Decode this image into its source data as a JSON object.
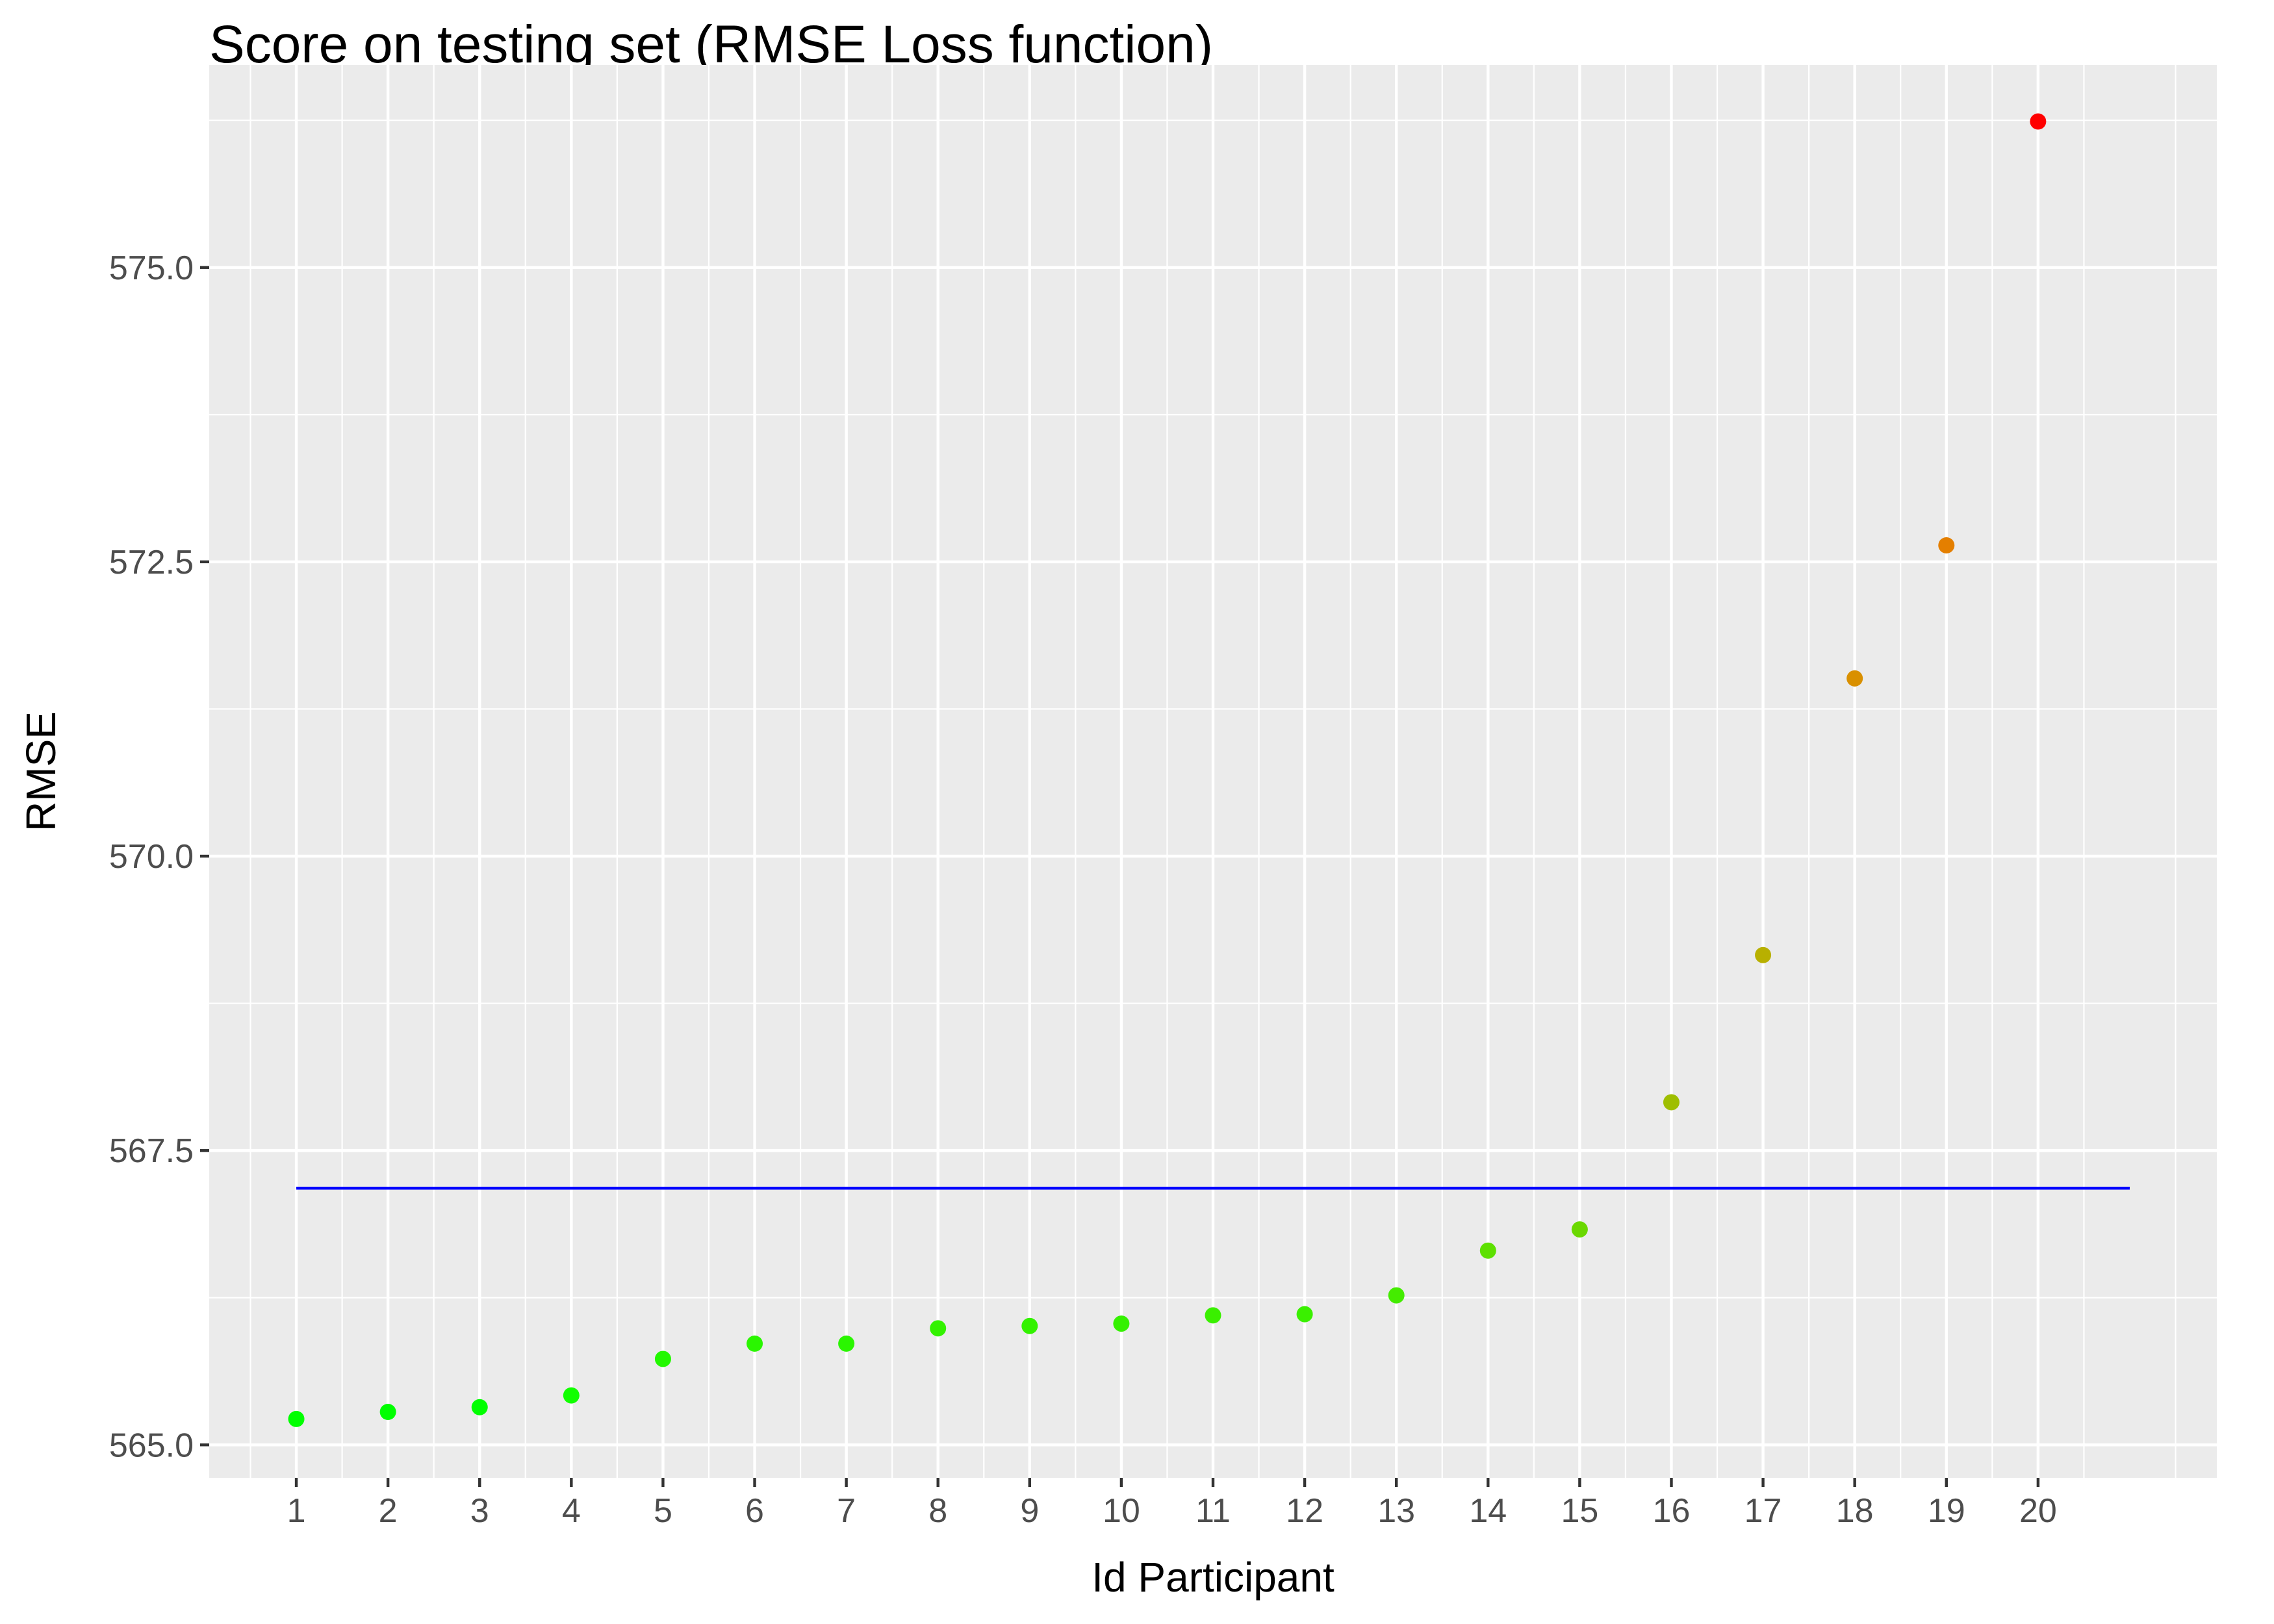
{
  "chart_data": {
    "type": "scatter",
    "title": "Score on testing set (RMSE Loss function)",
    "xlabel": "Id Participant",
    "ylabel": "RMSE",
    "x_ticks": [
      "1",
      "2",
      "3",
      "4",
      "5",
      "6",
      "7",
      "8",
      "9",
      "10",
      "11",
      "12",
      "13",
      "14",
      "15",
      "16",
      "17",
      "18",
      "19",
      "20"
    ],
    "y_ticks": [
      "565.0",
      "567.5",
      "570.0",
      "572.5",
      "575.0"
    ],
    "y_tick_values": [
      565.0,
      567.5,
      570.0,
      572.5,
      575.0
    ],
    "xlim": [
      0.05,
      21.95
    ],
    "ylim": [
      564.72,
      576.72
    ],
    "grid": true,
    "legend": "none",
    "points": [
      {
        "x": 1,
        "y": 565.22,
        "color": "#00ff00"
      },
      {
        "x": 2,
        "y": 565.28,
        "color": "#00ff00"
      },
      {
        "x": 3,
        "y": 565.32,
        "color": "#00ff00"
      },
      {
        "x": 4,
        "y": 565.42,
        "color": "#11ff00"
      },
      {
        "x": 5,
        "y": 565.73,
        "color": "#22f800"
      },
      {
        "x": 6,
        "y": 565.86,
        "color": "#2af600"
      },
      {
        "x": 7,
        "y": 565.86,
        "color": "#2af600"
      },
      {
        "x": 8,
        "y": 565.99,
        "color": "#33f200"
      },
      {
        "x": 9,
        "y": 566.01,
        "color": "#33f200"
      },
      {
        "x": 10,
        "y": 566.03,
        "color": "#35f100"
      },
      {
        "x": 11,
        "y": 566.1,
        "color": "#3af000"
      },
      {
        "x": 12,
        "y": 566.11,
        "color": "#3af000"
      },
      {
        "x": 13,
        "y": 566.27,
        "color": "#44ec00"
      },
      {
        "x": 14,
        "y": 566.65,
        "color": "#5de000"
      },
      {
        "x": 15,
        "y": 566.83,
        "color": "#6ad800"
      },
      {
        "x": 16,
        "y": 567.91,
        "color": "#9ebe00"
      },
      {
        "x": 17,
        "y": 569.16,
        "color": "#b8b000"
      },
      {
        "x": 18,
        "y": 571.51,
        "color": "#d99000"
      },
      {
        "x": 19,
        "y": 572.64,
        "color": "#e47f00"
      },
      {
        "x": 20,
        "y": 576.24,
        "color": "#ff0000"
      }
    ],
    "reference_line": {
      "y": 567.18,
      "x_start": 1,
      "x_end": 21,
      "color": "#0000ff"
    },
    "panel_background": "#ebebeb",
    "grid_color": "#ffffff"
  }
}
